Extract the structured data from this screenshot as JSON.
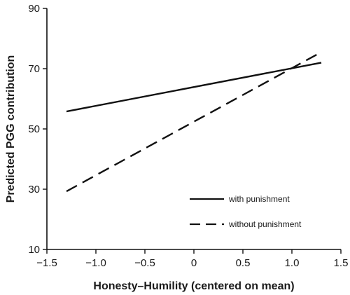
{
  "chart_data": {
    "type": "line",
    "xlabel": "Honesty–Humility (centered on mean)",
    "ylabel": "Predicted PGG contribution",
    "xlim": [
      -1.5,
      1.5
    ],
    "ylim": [
      10,
      90
    ],
    "xticks": [
      -1.5,
      -1.0,
      -0.5,
      0,
      0.5,
      1.0,
      1.5
    ],
    "xtick_labels": [
      "−1.5",
      "−1.0",
      "−0.5",
      "0",
      "0.5",
      "1.0",
      "1.5"
    ],
    "yticks": [
      10,
      30,
      50,
      70,
      90
    ],
    "ytick_labels": [
      "10",
      "30",
      "50",
      "70",
      "90"
    ],
    "grid": false,
    "legend_position": "bottom-right",
    "series": [
      {
        "name": "with punishment",
        "style": "solid",
        "color": "#111111",
        "x": [
          -1.3,
          1.3
        ],
        "y": [
          55.8,
          72.0
        ]
      },
      {
        "name": "without punishment",
        "style": "dashed",
        "color": "#111111",
        "x": [
          -1.3,
          1.3
        ],
        "y": [
          29.3,
          75.5
        ]
      }
    ]
  }
}
